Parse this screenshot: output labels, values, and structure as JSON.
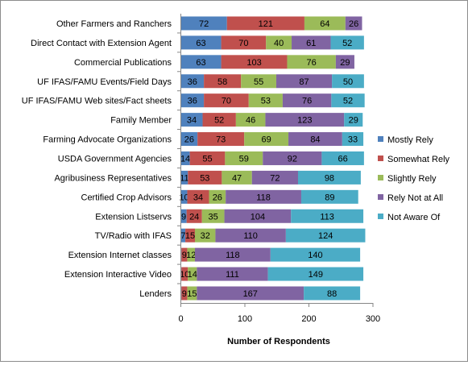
{
  "chart_data": {
    "type": "bar",
    "orientation": "horizontal",
    "stacked": true,
    "title": "",
    "xlabel": "Number of Respondents",
    "ylabel": "",
    "xlim": [
      0,
      300
    ],
    "xticks": [
      0,
      100,
      200,
      300
    ],
    "grid": false,
    "legend_position": "right",
    "categories": [
      "Other Farmers and Ranchers",
      "Direct Contact with Extension Agent",
      "Commercial Publications",
      "UF IFAS/FAMU Events/Field Days",
      "UF IFAS/FAMU Web sites/Fact sheets",
      "Family Member",
      "Farming Advocate Organizations",
      "USDA Government Agencies",
      "Agribusiness Representatives",
      "Certified Crop Advisors",
      "Extension Listservs",
      "TV/Radio with IFAS",
      "Extension Internet classes",
      "Extension Interactive Video",
      "Lenders"
    ],
    "series": [
      {
        "name": "Mostly Rely",
        "color": "#4f81bd",
        "values": [
          72,
          63,
          63,
          36,
          36,
          34,
          26,
          14,
          11,
          10,
          9,
          7,
          1,
          1,
          1
        ]
      },
      {
        "name": "Somewhat Rely",
        "color": "#c0504d",
        "values": [
          121,
          70,
          103,
          58,
          70,
          52,
          73,
          55,
          53,
          34,
          24,
          15,
          9,
          10,
          9
        ]
      },
      {
        "name": "Slightly Rely",
        "color": "#9bbb59",
        "values": [
          64,
          40,
          76,
          55,
          53,
          46,
          69,
          59,
          47,
          26,
          35,
          32,
          12,
          14,
          15
        ]
      },
      {
        "name": "Rely Not at All",
        "color": "#8064a2",
        "values": [
          26,
          61,
          29,
          87,
          76,
          123,
          84,
          92,
          72,
          118,
          104,
          110,
          118,
          111,
          167
        ]
      },
      {
        "name": "Not Aware Of",
        "color": "#4bacc6",
        "values": [
          0,
          52,
          0,
          50,
          52,
          29,
          33,
          66,
          98,
          89,
          113,
          124,
          140,
          149,
          88
        ]
      }
    ],
    "data_labels": [
      [
        "72",
        "121",
        "64",
        "26",
        ""
      ],
      [
        "63",
        "70",
        "40",
        "61",
        "52"
      ],
      [
        "63",
        "103",
        "76",
        "29",
        ""
      ],
      [
        "36",
        "58",
        "55",
        "87",
        "50"
      ],
      [
        "36",
        "70",
        "53",
        "76",
        "52"
      ],
      [
        "34",
        "52",
        "46",
        "123",
        "29"
      ],
      [
        "26",
        "73",
        "69",
        "84",
        "33"
      ],
      [
        "14",
        "55",
        "59",
        "92",
        "66"
      ],
      [
        "11",
        "53",
        "47",
        "72",
        "98"
      ],
      [
        "10",
        "34",
        "26",
        "118",
        "89"
      ],
      [
        "9",
        "24",
        "35",
        "104",
        "113"
      ],
      [
        "7",
        "15",
        "32",
        "110",
        "124"
      ],
      [
        "",
        "9",
        "12",
        "118",
        "140"
      ],
      [
        "",
        "10",
        "14",
        "111",
        "149"
      ],
      [
        "",
        "9",
        "15",
        "167",
        "88"
      ]
    ]
  }
}
